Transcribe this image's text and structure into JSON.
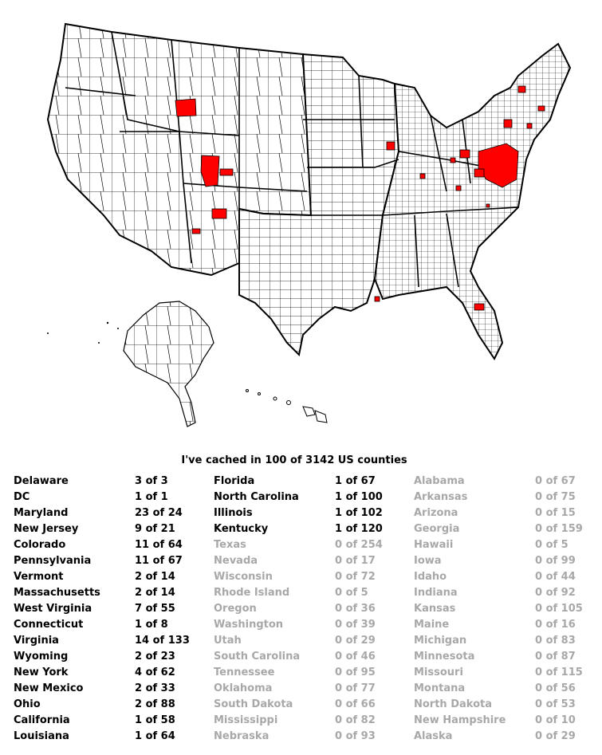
{
  "summary": "I've cached in 100 of 3142 US counties",
  "colors": {
    "cached": "#ff0000",
    "border": "#000000",
    "fill": "#ffffff",
    "zero_text": "#a8a8a8"
  },
  "columns": [
    [
      {
        "state": "Delaware",
        "count": "3 of 3",
        "cached": true
      },
      {
        "state": "DC",
        "count": "1 of 1",
        "cached": true
      },
      {
        "state": "Maryland",
        "count": "23 of 24",
        "cached": true
      },
      {
        "state": "New Jersey",
        "count": "9 of 21",
        "cached": true
      },
      {
        "state": "Colorado",
        "count": "11 of 64",
        "cached": true
      },
      {
        "state": "Pennsylvania",
        "count": "11 of 67",
        "cached": true
      },
      {
        "state": "Vermont",
        "count": "2 of 14",
        "cached": true
      },
      {
        "state": "Massachusetts",
        "count": "2 of 14",
        "cached": true
      },
      {
        "state": "West Virginia",
        "count": "7 of 55",
        "cached": true
      },
      {
        "state": "Connecticut",
        "count": "1 of 8",
        "cached": true
      },
      {
        "state": "Virginia",
        "count": "14 of 133",
        "cached": true
      },
      {
        "state": "Wyoming",
        "count": "2 of 23",
        "cached": true
      },
      {
        "state": "New York",
        "count": "4 of 62",
        "cached": true
      },
      {
        "state": "New Mexico",
        "count": "2 of 33",
        "cached": true
      },
      {
        "state": "Ohio",
        "count": "2 of 88",
        "cached": true
      },
      {
        "state": "California",
        "count": "1 of 58",
        "cached": true
      },
      {
        "state": "Louisiana",
        "count": "1 of 64",
        "cached": true
      }
    ],
    [
      {
        "state": "Florida",
        "count": "1 of 67",
        "cached": true
      },
      {
        "state": "North Carolina",
        "count": "1 of 100",
        "cached": true
      },
      {
        "state": "Illinois",
        "count": "1 of 102",
        "cached": true
      },
      {
        "state": "Kentucky",
        "count": "1 of 120",
        "cached": true
      },
      {
        "state": "Texas",
        "count": "0 of 254",
        "cached": false
      },
      {
        "state": "Nevada",
        "count": "0 of 17",
        "cached": false
      },
      {
        "state": "Wisconsin",
        "count": "0 of 72",
        "cached": false
      },
      {
        "state": "Rhode Island",
        "count": "0 of 5",
        "cached": false
      },
      {
        "state": "Oregon",
        "count": "0 of 36",
        "cached": false
      },
      {
        "state": "Washington",
        "count": "0 of 39",
        "cached": false
      },
      {
        "state": "Utah",
        "count": "0 of 29",
        "cached": false
      },
      {
        "state": "South Carolina",
        "count": "0 of 46",
        "cached": false
      },
      {
        "state": "Tennessee",
        "count": "0 of 95",
        "cached": false
      },
      {
        "state": "Oklahoma",
        "count": "0 of 77",
        "cached": false
      },
      {
        "state": "South Dakota",
        "count": "0 of 66",
        "cached": false
      },
      {
        "state": "Mississippi",
        "count": "0 of 82",
        "cached": false
      },
      {
        "state": "Nebraska",
        "count": "0 of 93",
        "cached": false
      }
    ],
    [
      {
        "state": "Alabama",
        "count": "0 of 67",
        "cached": false
      },
      {
        "state": "Arkansas",
        "count": "0 of 75",
        "cached": false
      },
      {
        "state": "Arizona",
        "count": "0 of 15",
        "cached": false
      },
      {
        "state": "Georgia",
        "count": "0 of 159",
        "cached": false
      },
      {
        "state": "Hawaii",
        "count": "0 of 5",
        "cached": false
      },
      {
        "state": "Iowa",
        "count": "0 of 99",
        "cached": false
      },
      {
        "state": "Idaho",
        "count": "0 of 44",
        "cached": false
      },
      {
        "state": "Indiana",
        "count": "0 of 92",
        "cached": false
      },
      {
        "state": "Kansas",
        "count": "0 of 105",
        "cached": false
      },
      {
        "state": "Maine",
        "count": "0 of 16",
        "cached": false
      },
      {
        "state": "Michigan",
        "count": "0 of 83",
        "cached": false
      },
      {
        "state": "Minnesota",
        "count": "0 of 87",
        "cached": false
      },
      {
        "state": "Missouri",
        "count": "0 of 115",
        "cached": false
      },
      {
        "state": "Montana",
        "count": "0 of 56",
        "cached": false
      },
      {
        "state": "North Dakota",
        "count": "0 of 53",
        "cached": false
      },
      {
        "state": "New Hampshire",
        "count": "0 of 10",
        "cached": false
      },
      {
        "state": "Alaska",
        "count": "0 of 29",
        "cached": false
      }
    ]
  ]
}
